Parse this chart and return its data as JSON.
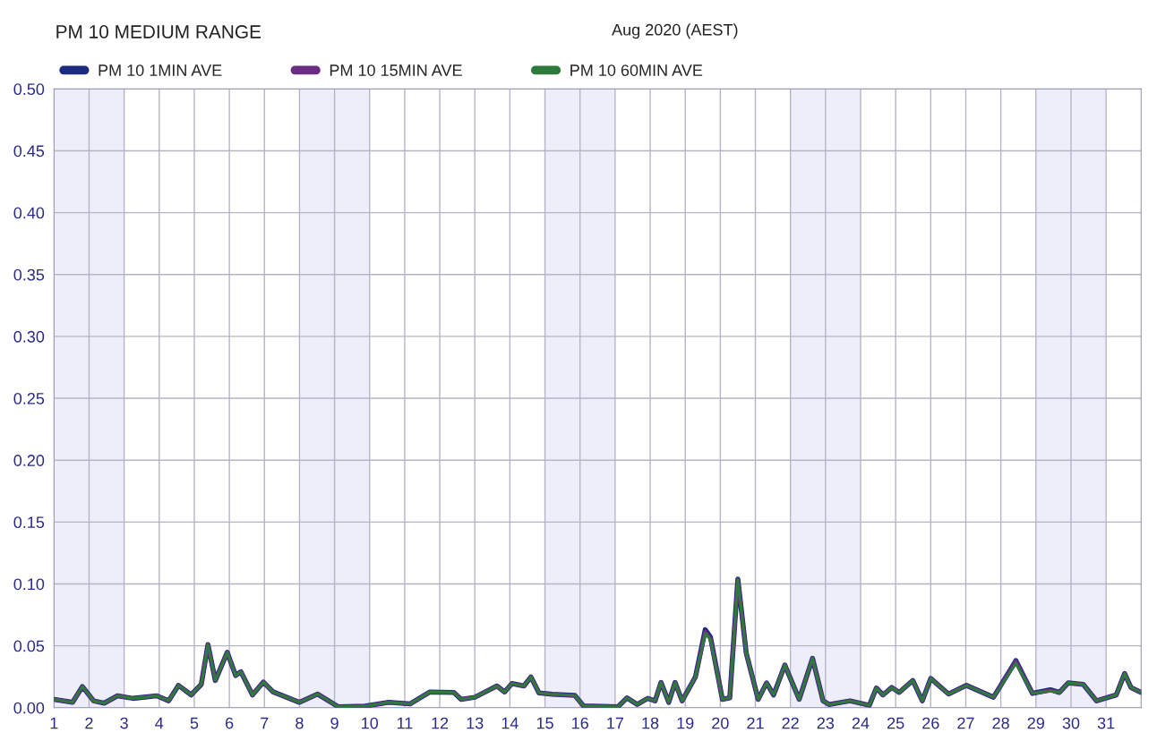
{
  "chart_data": {
    "type": "line",
    "title": "PM 10 MEDIUM RANGE",
    "subtitle": "Aug 2020 (AEST)",
    "x": [
      1.0,
      1.53,
      1.81,
      2.13,
      2.43,
      2.81,
      3.25,
      3.93,
      4.27,
      4.55,
      4.91,
      5.2,
      5.39,
      5.6,
      5.94,
      6.18,
      6.33,
      6.66,
      6.97,
      7.25,
      8.0,
      8.52,
      9.11,
      9.87,
      10.55,
      11.15,
      11.72,
      12.4,
      12.61,
      13.0,
      13.63,
      13.85,
      14.06,
      14.4,
      14.6,
      14.83,
      15.21,
      15.85,
      16.1,
      17.08,
      17.34,
      17.63,
      17.93,
      18.14,
      18.31,
      18.53,
      18.71,
      18.91,
      19.29,
      19.57,
      19.72,
      20.06,
      20.27,
      20.5,
      20.74,
      21.08,
      21.32,
      21.52,
      21.84,
      22.25,
      22.63,
      22.93,
      23.1,
      23.7,
      24.25,
      24.45,
      24.64,
      24.89,
      25.1,
      25.49,
      25.76,
      26.0,
      26.51,
      27.02,
      27.79,
      28.43,
      28.9,
      29.41,
      29.67,
      29.92,
      30.35,
      30.73,
      31.29,
      31.53,
      31.71,
      32.0
    ],
    "series": [
      {
        "name": "PM 10 1MIN AVE",
        "color": "#1c2a80",
        "values": [
          0.0067,
          0.0043,
          0.017,
          0.0055,
          0.0036,
          0.0096,
          0.0075,
          0.0096,
          0.0055,
          0.018,
          0.0103,
          0.0188,
          0.051,
          0.022,
          0.0447,
          0.026,
          0.029,
          0.0103,
          0.0207,
          0.0127,
          0.0043,
          0.011,
          0.0007,
          0.0012,
          0.0043,
          0.003,
          0.0127,
          0.0123,
          0.0067,
          0.0084,
          0.0175,
          0.0127,
          0.0195,
          0.0175,
          0.0248,
          0.012,
          0.0108,
          0.0099,
          0.0014,
          0.0007,
          0.0079,
          0.0026,
          0.0075,
          0.0055,
          0.0204,
          0.0043,
          0.0204,
          0.0055,
          0.0248,
          0.063,
          0.057,
          0.0067,
          0.0079,
          0.104,
          0.044,
          0.0067,
          0.02,
          0.0103,
          0.0344,
          0.0067,
          0.0399,
          0.0055,
          0.0026,
          0.0055,
          0.0019,
          0.0159,
          0.0103,
          0.0163,
          0.0123,
          0.0219,
          0.0055,
          0.0236,
          0.011,
          0.018,
          0.0084,
          0.038,
          0.0115,
          0.0145,
          0.0123,
          0.02,
          0.0188,
          0.0055,
          0.0103,
          0.0276,
          0.0163,
          0.0123
        ]
      },
      {
        "name": "PM 10 15MIN AVE",
        "color": "#6b2c84",
        "values": [
          0.0067,
          0.0043,
          0.017,
          0.0055,
          0.0036,
          0.0096,
          0.0075,
          0.0096,
          0.0055,
          0.018,
          0.0103,
          0.0188,
          0.051,
          0.022,
          0.0447,
          0.026,
          0.029,
          0.0103,
          0.0207,
          0.0127,
          0.0043,
          0.011,
          0.0007,
          0.0012,
          0.0043,
          0.003,
          0.0127,
          0.0123,
          0.0067,
          0.0084,
          0.0175,
          0.0127,
          0.0195,
          0.0175,
          0.0248,
          0.012,
          0.0108,
          0.0099,
          0.0014,
          0.0007,
          0.0079,
          0.0026,
          0.0075,
          0.0055,
          0.0204,
          0.0043,
          0.0204,
          0.0055,
          0.0248,
          0.0613,
          0.056,
          0.0067,
          0.0079,
          0.1036,
          0.044,
          0.0067,
          0.02,
          0.0103,
          0.0344,
          0.0067,
          0.0399,
          0.0055,
          0.0026,
          0.0055,
          0.0019,
          0.0159,
          0.0103,
          0.0163,
          0.0123,
          0.0219,
          0.0055,
          0.0236,
          0.011,
          0.018,
          0.0084,
          0.0375,
          0.0115,
          0.0139,
          0.0123,
          0.02,
          0.0188,
          0.0055,
          0.0103,
          0.0276,
          0.0163,
          0.0123
        ]
      },
      {
        "name": "PM 10 60MIN AVE",
        "color": "#2e7a3c",
        "values": [
          0.0067,
          0.0043,
          0.017,
          0.0055,
          0.0036,
          0.0096,
          0.0075,
          0.0096,
          0.0055,
          0.018,
          0.0103,
          0.0188,
          0.051,
          0.022,
          0.0447,
          0.026,
          0.029,
          0.0103,
          0.0207,
          0.0127,
          0.0043,
          0.011,
          0.0007,
          0.0012,
          0.0043,
          0.003,
          0.0127,
          0.0123,
          0.0067,
          0.0084,
          0.0175,
          0.0127,
          0.0195,
          0.0175,
          0.0248,
          0.012,
          0.0108,
          0.0099,
          0.0014,
          0.0007,
          0.0079,
          0.0026,
          0.0075,
          0.0055,
          0.0204,
          0.0043,
          0.0204,
          0.0055,
          0.0248,
          0.06,
          0.055,
          0.0067,
          0.0079,
          0.1036,
          0.044,
          0.0067,
          0.02,
          0.0103,
          0.0344,
          0.0067,
          0.0399,
          0.0055,
          0.0026,
          0.0055,
          0.0019,
          0.0159,
          0.0103,
          0.0163,
          0.0123,
          0.0219,
          0.0055,
          0.0236,
          0.011,
          0.018,
          0.0084,
          0.036,
          0.0115,
          0.0135,
          0.0123,
          0.02,
          0.0188,
          0.0055,
          0.0103,
          0.0276,
          0.0163,
          0.0123
        ]
      }
    ],
    "xlim": [
      1,
      32
    ],
    "xticks": [
      1,
      2,
      3,
      4,
      5,
      6,
      7,
      8,
      9,
      10,
      11,
      12,
      13,
      14,
      15,
      16,
      17,
      18,
      19,
      20,
      21,
      22,
      23,
      24,
      25,
      26,
      27,
      28,
      29,
      30,
      31
    ],
    "ylim": [
      0,
      0.5
    ],
    "yticks": [
      {
        "value": 0,
        "label": "0.00"
      },
      {
        "value": 0.05,
        "label": "0.05"
      },
      {
        "value": 0.1,
        "label": "0.10"
      },
      {
        "value": 0.15,
        "label": "0.15"
      },
      {
        "value": 0.2,
        "label": "0.20"
      },
      {
        "value": 0.25,
        "label": "0.25"
      },
      {
        "value": 0.3,
        "label": "0.30"
      },
      {
        "value": 0.35,
        "label": "0.35"
      },
      {
        "value": 0.4,
        "label": "0.40"
      },
      {
        "value": 0.45,
        "label": "0.45"
      },
      {
        "value": 0.5,
        "label": "0.50"
      }
    ],
    "bands": [
      {
        "axis": "x",
        "from": 1,
        "to": 3,
        "color": "#eeeefa"
      },
      {
        "axis": "x",
        "from": 8,
        "to": 10,
        "color": "#eeeefa"
      },
      {
        "axis": "x",
        "from": 15,
        "to": 17,
        "color": "#eeeefa"
      },
      {
        "axis": "x",
        "from": 22,
        "to": 24,
        "color": "#eeeefa"
      },
      {
        "axis": "x",
        "from": 29,
        "to": 31,
        "color": "#eeeefa"
      }
    ],
    "grid": true,
    "legend": "top left",
    "line_style": "solid"
  }
}
